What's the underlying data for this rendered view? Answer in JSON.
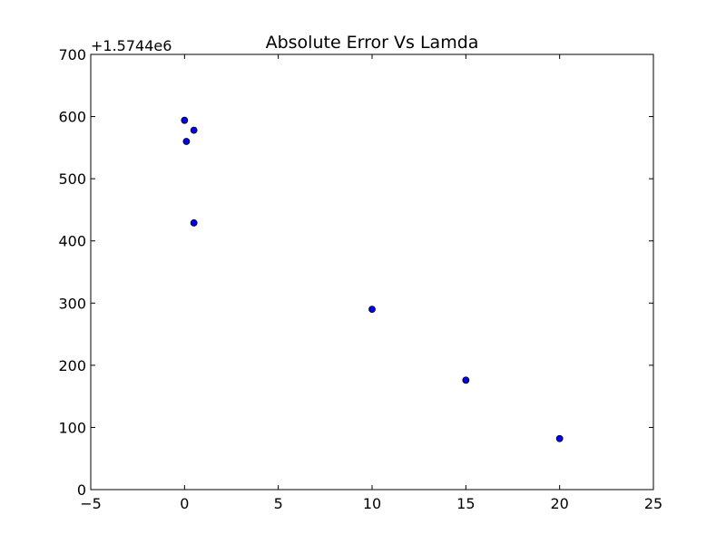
{
  "chart_data": {
    "type": "scatter",
    "title": "Absolute Error Vs Lamda",
    "xlabel": "",
    "ylabel": "",
    "y_offset_label": "+1.5744e6",
    "xlim": [
      -5,
      25
    ],
    "ylim": [
      0,
      700
    ],
    "x_ticks": [
      "−5",
      "0",
      "5",
      "10",
      "15",
      "20",
      "25"
    ],
    "y_ticks": [
      "0",
      "100",
      "200",
      "300",
      "400",
      "500",
      "600",
      "700"
    ],
    "grid": false,
    "marker_color": "#0000ff",
    "points": [
      {
        "x": 0.0,
        "y": 594
      },
      {
        "x": 0.1,
        "y": 560
      },
      {
        "x": 0.5,
        "y": 578
      },
      {
        "x": 0.5,
        "y": 429
      },
      {
        "x": 10,
        "y": 290
      },
      {
        "x": 15,
        "y": 176
      },
      {
        "x": 20,
        "y": 82
      }
    ]
  }
}
